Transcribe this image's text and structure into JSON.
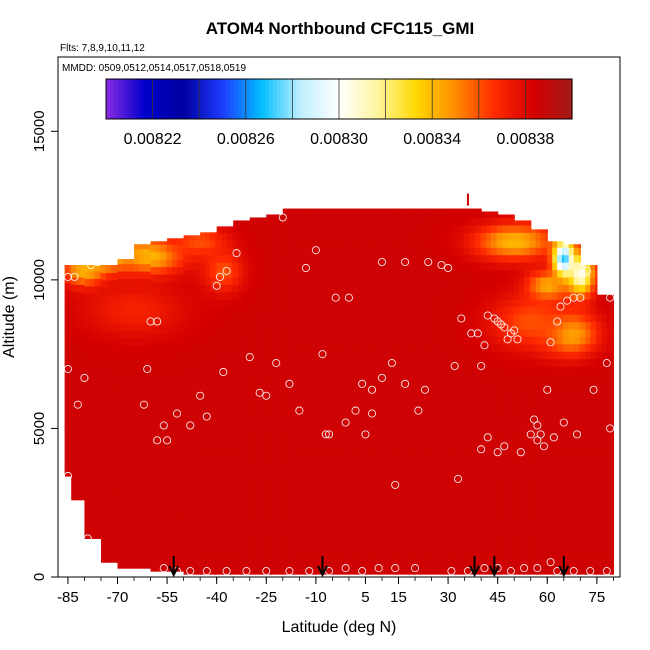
{
  "chart_data": {
    "type": "heatmap",
    "title": "ATOM4 Northbound CFC115_GMI",
    "subtitle_flights": "Flts: 7,8,9,10,11,12",
    "subtitle_dates": "MMDD: 0509,0512,0514,0517,0518,0519",
    "xlabel": "Latitude (deg N)",
    "ylabel": "Altitude (m)",
    "xlim": [
      -88,
      82
    ],
    "ylim": [
      0,
      17500
    ],
    "x_ticks": [
      -85,
      -70,
      -55,
      -40,
      -25,
      -10,
      5,
      15,
      30,
      45,
      60,
      75
    ],
    "x_tick_labels": [
      "-85",
      "-70",
      "-55",
      "-40",
      "-25",
      "-10",
      "5",
      "15",
      "30",
      "45",
      "60",
      "75"
    ],
    "y_ticks": [
      0,
      5000,
      10000,
      15000
    ],
    "y_tick_labels": [
      "0",
      "5000",
      "10000",
      "15000"
    ],
    "colorbar": {
      "min": 0.0082,
      "max": 0.0084,
      "ticks": [
        0.00822,
        0.00826,
        0.0083,
        0.00834,
        0.00838
      ],
      "tick_labels": [
        "0.00822",
        "0.00826",
        "0.00830",
        "0.00834",
        "0.00838"
      ],
      "colors": [
        "#8a2be2",
        "#0000cd",
        "#0000a0",
        "#1e3cff",
        "#00bfff",
        "#bfefff",
        "#ffffff",
        "#fff59d",
        "#ffd700",
        "#ff8c00",
        "#ff2a00",
        "#d40000",
        "#a31a1a"
      ]
    },
    "background_value": 0.008385,
    "coverage": {
      "lat_edges": [
        -86,
        -84,
        -80,
        -75,
        -70,
        -65,
        -60,
        -55,
        -50,
        -45,
        -40,
        -35,
        -30,
        -25,
        -20,
        -15,
        -10,
        -5,
        0,
        5,
        10,
        15,
        20,
        25,
        30,
        35,
        40,
        45,
        50,
        55,
        60,
        65,
        70,
        75,
        80
      ],
      "top_altitude": [
        10500,
        10500,
        10500,
        10500,
        10700,
        11200,
        11300,
        11400,
        11500,
        11600,
        11800,
        12000,
        12100,
        12200,
        12400,
        12400,
        12400,
        12400,
        12400,
        12400,
        12400,
        12400,
        12400,
        12400,
        12400,
        12400,
        12300,
        12200,
        12000,
        11700,
        11300,
        11200,
        10500,
        9500
      ],
      "bottom_altitude": [
        3400,
        2600,
        1300,
        500,
        300,
        300,
        200,
        200,
        100,
        100,
        100,
        100,
        100,
        100,
        100,
        100,
        100,
        100,
        100,
        100,
        100,
        100,
        100,
        100,
        100,
        100,
        100,
        100,
        100,
        100,
        100,
        100,
        100,
        100
      ]
    },
    "anomalies": [
      {
        "lat": -75,
        "alt": 11000,
        "value": 0.0083,
        "r_lat": 8,
        "r_alt": 600
      },
      {
        "lat": -80,
        "alt": 10300,
        "value": 0.00834,
        "r_lat": 6,
        "r_alt": 500
      },
      {
        "lat": -60,
        "alt": 10800,
        "value": 0.00834,
        "r_lat": 10,
        "r_alt": 600
      },
      {
        "lat": -45,
        "alt": 11300,
        "value": 0.00836,
        "r_lat": 8,
        "r_alt": 500
      },
      {
        "lat": -38,
        "alt": 10300,
        "value": 0.00836,
        "r_lat": 6,
        "r_alt": 700
      },
      {
        "lat": -65,
        "alt": 9000,
        "value": 0.00837,
        "r_lat": 15,
        "r_alt": 900
      },
      {
        "lat": 50,
        "alt": 11300,
        "value": 0.00834,
        "r_lat": 12,
        "r_alt": 600
      },
      {
        "lat": 65,
        "alt": 10700,
        "value": 0.00826,
        "r_lat": 3,
        "r_alt": 600
      },
      {
        "lat": 70,
        "alt": 10200,
        "value": 0.0083,
        "r_lat": 4,
        "r_alt": 700
      },
      {
        "lat": 60,
        "alt": 9800,
        "value": 0.00834,
        "r_lat": 6,
        "r_alt": 500
      },
      {
        "lat": 67,
        "alt": 8200,
        "value": 0.00834,
        "r_lat": 8,
        "r_alt": 700
      },
      {
        "lat": 55,
        "alt": 8600,
        "value": 0.00836,
        "r_lat": 12,
        "r_alt": 900
      }
    ],
    "points": [
      [
        -85,
        10100
      ],
      [
        -83,
        10100
      ],
      [
        -78,
        10500
      ],
      [
        -76,
        10600
      ],
      [
        -70,
        11200
      ],
      [
        -68,
        11300
      ],
      [
        -85,
        7000
      ],
      [
        -80,
        6700
      ],
      [
        -82,
        5800
      ],
      [
        -85,
        3400
      ],
      [
        -79,
        1300
      ],
      [
        -60,
        8600
      ],
      [
        -58,
        8600
      ],
      [
        -61,
        7000
      ],
      [
        -62,
        5800
      ],
      [
        -56,
        5100
      ],
      [
        -55,
        4600
      ],
      [
        -58,
        4600
      ],
      [
        -52,
        5500
      ],
      [
        -48,
        5100
      ],
      [
        -45,
        6100
      ],
      [
        -43,
        5400
      ],
      [
        -38,
        6900
      ],
      [
        -37,
        10300
      ],
      [
        -40,
        9800
      ],
      [
        -39,
        10100
      ],
      [
        -34,
        10900
      ],
      [
        -30,
        7400
      ],
      [
        -27,
        6200
      ],
      [
        -25,
        6100
      ],
      [
        -22,
        7200
      ],
      [
        -18,
        6500
      ],
      [
        -15,
        5600
      ],
      [
        -20,
        12100
      ],
      [
        -13,
        10400
      ],
      [
        -10,
        11000
      ],
      [
        -8,
        7500
      ],
      [
        -7,
        4800
      ],
      [
        -6,
        4800
      ],
      [
        -4,
        9400
      ],
      [
        0,
        9400
      ],
      [
        2,
        5600
      ],
      [
        4,
        6500
      ],
      [
        -1,
        5200
      ],
      [
        5,
        4800
      ],
      [
        7,
        5500
      ],
      [
        7,
        6300
      ],
      [
        10,
        6700
      ],
      [
        10,
        10600
      ],
      [
        13,
        7200
      ],
      [
        14,
        3100
      ],
      [
        17,
        6500
      ],
      [
        17,
        10600
      ],
      [
        21,
        5600
      ],
      [
        23,
        6300
      ],
      [
        24,
        10600
      ],
      [
        28,
        10500
      ],
      [
        30,
        10400
      ],
      [
        32,
        7100
      ],
      [
        33,
        3300
      ],
      [
        34,
        8700
      ],
      [
        37,
        8200
      ],
      [
        39,
        8200
      ],
      [
        40,
        7100
      ],
      [
        41,
        7800
      ],
      [
        42,
        8800
      ],
      [
        44,
        8700
      ],
      [
        45,
        8600
      ],
      [
        46,
        8500
      ],
      [
        47,
        8400
      ],
      [
        48,
        8000
      ],
      [
        49,
        8200
      ],
      [
        50,
        8300
      ],
      [
        51,
        8000
      ],
      [
        40,
        4300
      ],
      [
        42,
        4700
      ],
      [
        45,
        4200
      ],
      [
        47,
        4400
      ],
      [
        52,
        4200
      ],
      [
        55,
        4800
      ],
      [
        57,
        4600
      ],
      [
        58,
        4800
      ],
      [
        59,
        4400
      ],
      [
        56,
        5300
      ],
      [
        57,
        5100
      ],
      [
        60,
        6300
      ],
      [
        61,
        7900
      ],
      [
        63,
        8600
      ],
      [
        64,
        9100
      ],
      [
        66,
        9300
      ],
      [
        68,
        9400
      ],
      [
        70,
        9400
      ],
      [
        72,
        10300
      ],
      [
        74,
        11000
      ],
      [
        75,
        11000
      ],
      [
        76,
        10700
      ],
      [
        78,
        10100
      ],
      [
        62,
        4700
      ],
      [
        65,
        5200
      ],
      [
        69,
        4800
      ],
      [
        74,
        6300
      ],
      [
        78,
        7200
      ],
      [
        79,
        5000
      ],
      [
        79,
        9400
      ],
      [
        -56,
        300
      ],
      [
        -52,
        200
      ],
      [
        -48,
        200
      ],
      [
        -43,
        200
      ],
      [
        -37,
        200
      ],
      [
        -31,
        200
      ],
      [
        -25,
        200
      ],
      [
        -18,
        200
      ],
      [
        -12,
        200
      ],
      [
        -6,
        200
      ],
      [
        -1,
        300
      ],
      [
        4,
        200
      ],
      [
        9,
        300
      ],
      [
        14,
        300
      ],
      [
        20,
        300
      ],
      [
        31,
        200
      ],
      [
        36,
        200
      ],
      [
        41,
        300
      ],
      [
        45,
        300
      ],
      [
        49,
        200
      ],
      [
        53,
        300
      ],
      [
        57,
        300
      ],
      [
        61,
        500
      ],
      [
        63,
        200
      ],
      [
        68,
        200
      ],
      [
        73,
        200
      ],
      [
        78,
        200
      ]
    ],
    "arrows": [
      -53,
      -8,
      38,
      44,
      65
    ],
    "top_marker": {
      "lat": 36,
      "alt": 12700
    }
  }
}
